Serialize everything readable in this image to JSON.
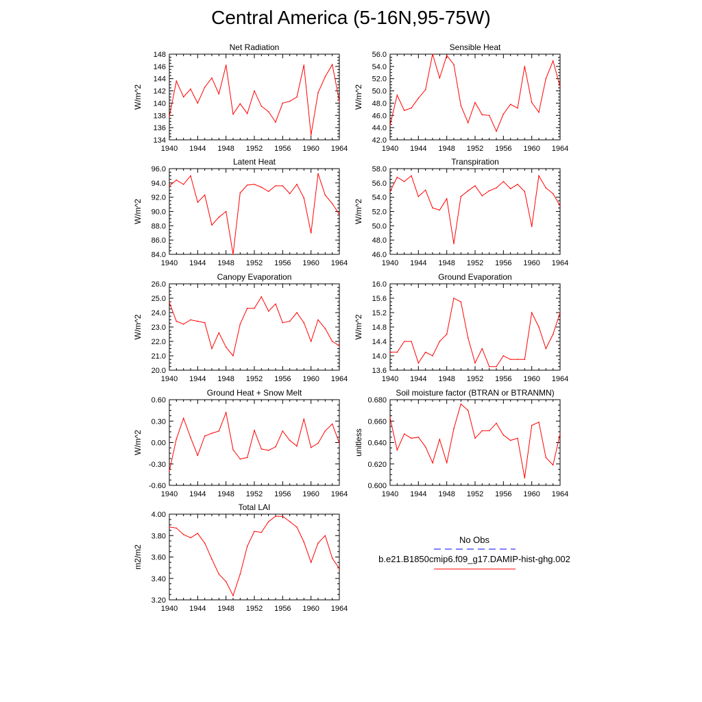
{
  "title": "Central America (5-16N,95-75W)",
  "colors": {
    "model_line": "#ff0000",
    "obs_line": "#0000ff",
    "axis": "#000000"
  },
  "legend": {
    "obs_label": "No Obs",
    "model_label": "b.e21.B1850cmip6.f09_g17.DAMIP-hist-ghg.002"
  },
  "chart_data": [
    {
      "type": "line",
      "title": "Net Radiation",
      "ylabel": "W/m^2",
      "x": [
        1940,
        1941,
        1942,
        1943,
        1944,
        1945,
        1946,
        1947,
        1948,
        1949,
        1950,
        1951,
        1952,
        1953,
        1954,
        1955,
        1956,
        1957,
        1958,
        1959,
        1960,
        1961,
        1962,
        1963,
        1964
      ],
      "xlim": [
        1940,
        1964
      ],
      "xticks": [
        "1940",
        "1944",
        "1948",
        "1952",
        "1956",
        "1960",
        "1964"
      ],
      "ylim": [
        134,
        148
      ],
      "yticks": [
        "134",
        "136",
        "138",
        "140",
        "142",
        "144",
        "146",
        "148"
      ],
      "series": [
        {
          "values": [
            137.8,
            143.6,
            141.0,
            142.3,
            140.0,
            142.6,
            144.1,
            141.5,
            146.2,
            138.2,
            139.9,
            138.3,
            142.0,
            139.5,
            138.6,
            136.9,
            140.0,
            140.3,
            141.0,
            146.2,
            134.8,
            141.7,
            144.3,
            146.3,
            140.3
          ]
        }
      ]
    },
    {
      "type": "line",
      "title": "Sensible Heat",
      "ylabel": "W/m^2",
      "x": [
        1940,
        1941,
        1942,
        1943,
        1944,
        1945,
        1946,
        1947,
        1948,
        1949,
        1950,
        1951,
        1952,
        1953,
        1954,
        1955,
        1956,
        1957,
        1958,
        1959,
        1960,
        1961,
        1962,
        1963,
        1964
      ],
      "xlim": [
        1940,
        1964
      ],
      "xticks": [
        "1940",
        "1944",
        "1948",
        "1952",
        "1956",
        "1960",
        "1964"
      ],
      "ylim": [
        42,
        56
      ],
      "yticks": [
        "42.0",
        "44.0",
        "46.0",
        "48.0",
        "50.0",
        "52.0",
        "54.0",
        "56.0"
      ],
      "series": [
        {
          "values": [
            44.4,
            49.3,
            46.8,
            47.2,
            48.8,
            50.2,
            56.0,
            52.1,
            55.8,
            54.3,
            47.6,
            44.8,
            48.1,
            46.1,
            46.0,
            43.4,
            46.2,
            47.8,
            47.2,
            54.0,
            48.1,
            46.5,
            52.0,
            54.9,
            50.7
          ]
        }
      ]
    },
    {
      "type": "line",
      "title": "Latent Heat",
      "ylabel": "W/m^2",
      "x": [
        1940,
        1941,
        1942,
        1943,
        1944,
        1945,
        1946,
        1947,
        1948,
        1949,
        1950,
        1951,
        1952,
        1953,
        1954,
        1955,
        1956,
        1957,
        1958,
        1959,
        1960,
        1961,
        1962,
        1963,
        1964
      ],
      "xlim": [
        1940,
        1964
      ],
      "xticks": [
        "1940",
        "1944",
        "1948",
        "1952",
        "1956",
        "1960",
        "1964"
      ],
      "ylim": [
        84,
        96
      ],
      "yticks": [
        "84.0",
        "86.0",
        "88.0",
        "90.0",
        "92.0",
        "94.0",
        "96.0"
      ],
      "series": [
        {
          "values": [
            93.6,
            94.4,
            93.8,
            95.0,
            91.3,
            92.3,
            88.1,
            89.2,
            90.0,
            84.0,
            92.6,
            93.7,
            93.8,
            93.4,
            92.8,
            93.6,
            93.6,
            92.5,
            93.8,
            91.9,
            87.0,
            95.3,
            92.3,
            91.1,
            89.6
          ]
        }
      ]
    },
    {
      "type": "line",
      "title": "Transpiration",
      "ylabel": "W/m^2",
      "x": [
        1940,
        1941,
        1942,
        1943,
        1944,
        1945,
        1946,
        1947,
        1948,
        1949,
        1950,
        1951,
        1952,
        1953,
        1954,
        1955,
        1956,
        1957,
        1958,
        1959,
        1960,
        1961,
        1962,
        1963,
        1964
      ],
      "xlim": [
        1940,
        1964
      ],
      "xticks": [
        "1940",
        "1944",
        "1948",
        "1952",
        "1956",
        "1960",
        "1964"
      ],
      "ylim": [
        46,
        58
      ],
      "yticks": [
        "46.0",
        "48.0",
        "50.0",
        "52.0",
        "54.0",
        "56.0",
        "58.0"
      ],
      "series": [
        {
          "values": [
            54.8,
            56.8,
            56.2,
            57.0,
            54.1,
            55.0,
            52.5,
            52.2,
            53.8,
            47.5,
            54.1,
            54.9,
            55.6,
            54.2,
            54.9,
            55.3,
            56.2,
            55.2,
            55.8,
            54.8,
            49.9,
            57.0,
            55.3,
            54.5,
            52.8
          ]
        }
      ]
    },
    {
      "type": "line",
      "title": "Canopy Evaporation",
      "ylabel": "W/m^2",
      "x": [
        1940,
        1941,
        1942,
        1943,
        1944,
        1945,
        1946,
        1947,
        1948,
        1949,
        1950,
        1951,
        1952,
        1953,
        1954,
        1955,
        1956,
        1957,
        1958,
        1959,
        1960,
        1961,
        1962,
        1963,
        1964
      ],
      "xlim": [
        1940,
        1964
      ],
      "xticks": [
        "1940",
        "1944",
        "1948",
        "1952",
        "1956",
        "1960",
        "1964"
      ],
      "ylim": [
        20,
        26
      ],
      "yticks": [
        "20.0",
        "21.0",
        "22.0",
        "23.0",
        "24.0",
        "25.0",
        "26.0"
      ],
      "series": [
        {
          "values": [
            24.7,
            23.4,
            23.2,
            23.5,
            23.4,
            23.3,
            21.5,
            22.6,
            21.6,
            21.0,
            23.2,
            24.3,
            24.3,
            25.1,
            24.1,
            24.6,
            23.3,
            23.4,
            24.0,
            23.3,
            22.0,
            23.5,
            22.9,
            22.0,
            21.7
          ]
        }
      ]
    },
    {
      "type": "line",
      "title": "Ground Evaporation",
      "ylabel": "W/m^2",
      "x": [
        1940,
        1941,
        1942,
        1943,
        1944,
        1945,
        1946,
        1947,
        1948,
        1949,
        1950,
        1951,
        1952,
        1953,
        1954,
        1955,
        1956,
        1957,
        1958,
        1959,
        1960,
        1961,
        1962,
        1963,
        1964
      ],
      "xlim": [
        1940,
        1964
      ],
      "xticks": [
        "1940",
        "1944",
        "1948",
        "1952",
        "1956",
        "1960",
        "1964"
      ],
      "ylim": [
        13.6,
        16.0
      ],
      "yticks": [
        "13.6",
        "14.0",
        "14.4",
        "14.8",
        "15.2",
        "15.6",
        "16.0"
      ],
      "series": [
        {
          "values": [
            14.1,
            14.1,
            14.4,
            14.4,
            13.8,
            14.1,
            14.0,
            14.4,
            14.6,
            15.6,
            15.5,
            14.5,
            13.8,
            14.2,
            13.7,
            13.7,
            14.0,
            13.9,
            13.9,
            13.9,
            15.2,
            14.8,
            14.2,
            14.6,
            15.2
          ]
        }
      ]
    },
    {
      "type": "line",
      "title": "Ground Heat + Snow Melt",
      "ylabel": "W/m^2",
      "x": [
        1940,
        1941,
        1942,
        1943,
        1944,
        1945,
        1946,
        1947,
        1948,
        1949,
        1950,
        1951,
        1952,
        1953,
        1954,
        1955,
        1956,
        1957,
        1958,
        1959,
        1960,
        1961,
        1962,
        1963,
        1964
      ],
      "xlim": [
        1940,
        1964
      ],
      "xticks": [
        "1940",
        "1944",
        "1948",
        "1952",
        "1956",
        "1960",
        "1964"
      ],
      "ylim": [
        -0.6,
        0.6
      ],
      "yticks": [
        "-0.60",
        "-0.30",
        "0.00",
        "0.30",
        "0.60"
      ],
      "series": [
        {
          "values": [
            -0.4,
            0.05,
            0.34,
            0.07,
            -0.18,
            0.09,
            0.13,
            0.16,
            0.42,
            -0.1,
            -0.23,
            -0.21,
            0.17,
            -0.09,
            -0.11,
            -0.06,
            0.16,
            0.03,
            -0.05,
            0.33,
            -0.07,
            -0.01,
            0.16,
            0.26,
            -0.01
          ]
        }
      ]
    },
    {
      "type": "line",
      "title": "Soil moisture factor (BTRAN or BTRANMN)",
      "ylabel": "unitless",
      "x": [
        1940,
        1941,
        1942,
        1943,
        1944,
        1945,
        1946,
        1947,
        1948,
        1949,
        1950,
        1951,
        1952,
        1953,
        1954,
        1955,
        1956,
        1957,
        1958,
        1959,
        1960,
        1961,
        1962,
        1963,
        1964
      ],
      "xlim": [
        1940,
        1964
      ],
      "xticks": [
        "1940",
        "1944",
        "1948",
        "1952",
        "1956",
        "1960",
        "1964"
      ],
      "ylim": [
        0.6,
        0.68
      ],
      "yticks": [
        "0.600",
        "0.620",
        "0.640",
        "0.660",
        "0.680"
      ],
      "series": [
        {
          "values": [
            0.663,
            0.633,
            0.648,
            0.644,
            0.645,
            0.636,
            0.621,
            0.643,
            0.621,
            0.653,
            0.676,
            0.67,
            0.644,
            0.651,
            0.651,
            0.658,
            0.647,
            0.642,
            0.644,
            0.607,
            0.656,
            0.659,
            0.626,
            0.619,
            0.648
          ]
        }
      ]
    },
    {
      "type": "line",
      "title": "Total LAI",
      "ylabel": "m2/m2",
      "x": [
        1940,
        1941,
        1942,
        1943,
        1944,
        1945,
        1946,
        1947,
        1948,
        1949,
        1950,
        1951,
        1952,
        1953,
        1954,
        1955,
        1956,
        1957,
        1958,
        1959,
        1960,
        1961,
        1962,
        1963,
        1964
      ],
      "xlim": [
        1940,
        1964
      ],
      "xticks": [
        "1940",
        "1944",
        "1948",
        "1952",
        "1956",
        "1960",
        "1964"
      ],
      "ylim": [
        3.2,
        4.0
      ],
      "yticks": [
        "3.20",
        "3.40",
        "3.60",
        "3.80",
        "4.00"
      ],
      "series": [
        {
          "values": [
            3.88,
            3.87,
            3.81,
            3.78,
            3.82,
            3.73,
            3.58,
            3.44,
            3.37,
            3.24,
            3.44,
            3.7,
            3.84,
            3.83,
            3.93,
            3.98,
            3.98,
            3.93,
            3.88,
            3.74,
            3.55,
            3.73,
            3.8,
            3.59,
            3.49
          ]
        }
      ]
    }
  ]
}
